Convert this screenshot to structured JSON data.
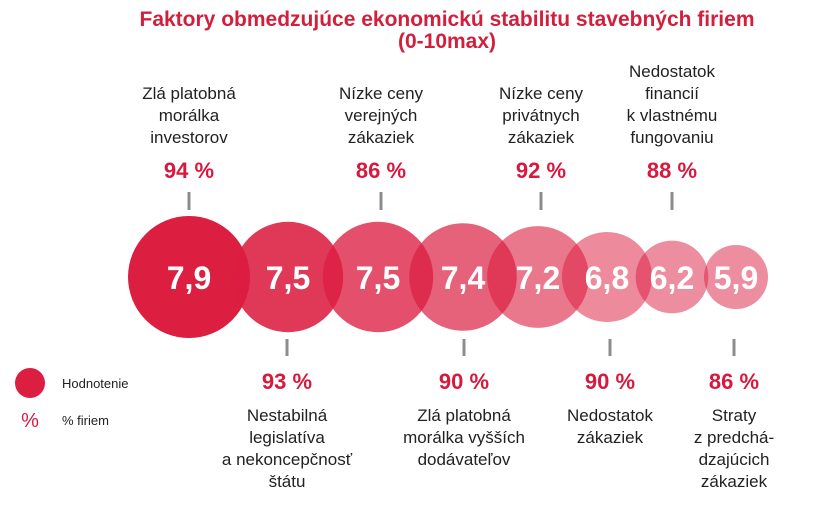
{
  "chart_data": {
    "type": "bubble",
    "title": "Faktory obmedzujúce ekonomickú stabilitu stavebných firiem",
    "subtitle": "(0-10max)",
    "scale": [
      0,
      10
    ],
    "accent_color": "#dc1e41",
    "items": [
      {
        "label": [
          "Zlá platobná",
          "morálka",
          "investorov"
        ],
        "rating": "7,9",
        "rating_value": 7.9,
        "percent": "94 %",
        "percent_value": 94,
        "position": "top"
      },
      {
        "label": [
          "Nestabilná",
          "legislatíva",
          "a nekoncepčnosť",
          "štátu"
        ],
        "rating": "7,5",
        "rating_value": 7.5,
        "percent": "93 %",
        "percent_value": 93,
        "position": "bottom"
      },
      {
        "label": [
          "Nízke ceny",
          "verejných",
          "zákaziek"
        ],
        "rating": "7,5",
        "rating_value": 7.5,
        "percent": "86 %",
        "percent_value": 86,
        "position": "top"
      },
      {
        "label": [
          "Zlá platobná",
          "morálka vyšších",
          "dodávateľov"
        ],
        "rating": "7,4",
        "rating_value": 7.4,
        "percent": "90 %",
        "percent_value": 90,
        "position": "bottom"
      },
      {
        "label": [
          "Nízke ceny",
          "privátnych",
          "zákaziek"
        ],
        "rating": "7,2",
        "rating_value": 7.2,
        "percent": "92 %",
        "percent_value": 92,
        "position": "top"
      },
      {
        "label": [
          "Nedostatok",
          "zákaziek"
        ],
        "rating": "6,8",
        "rating_value": 6.8,
        "percent": "90 %",
        "percent_value": 90,
        "position": "bottom"
      },
      {
        "label": [
          "Nedostatok",
          "financií",
          "k vlastnému",
          "fungovaniu"
        ],
        "rating": "6,2",
        "rating_value": 6.2,
        "percent": "88 %",
        "percent_value": 88,
        "position": "top"
      },
      {
        "label": [
          "Straty",
          "z predchá-",
          "dzajúcich",
          "zákaziek"
        ],
        "rating": "5,9",
        "rating_value": 5.9,
        "percent": "86 %",
        "percent_value": 86,
        "position": "bottom"
      }
    ],
    "legend": [
      {
        "symbol": "circle",
        "label": "Hodnotenie"
      },
      {
        "symbol": "%",
        "label": "% firiem"
      }
    ]
  }
}
